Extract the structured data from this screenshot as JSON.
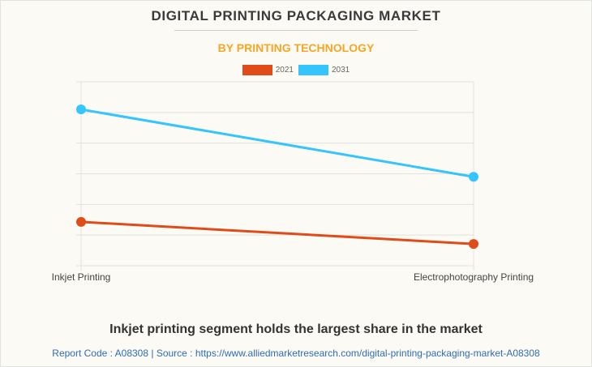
{
  "header": {
    "title": "DIGITAL PRINTING PACKAGING MARKET",
    "subtitle": "BY PRINTING TECHNOLOGY"
  },
  "legend": [
    {
      "label": "2021",
      "color": "#e04b1a"
    },
    {
      "label": "2031",
      "color": "#35c4fb"
    }
  ],
  "chart_data": {
    "type": "line",
    "title": "DIGITAL PRINTING PACKAGING MARKET",
    "subtitle": "BY PRINTING TECHNOLOGY",
    "categories": [
      "Inkjet Printing",
      "Electrophotography Printing"
    ],
    "series": [
      {
        "name": "2021",
        "color": "#e04b1a",
        "values": [
          14.3,
          7.1
        ]
      },
      {
        "name": "2031",
        "color": "#35c4fb",
        "values": [
          51,
          29
        ]
      }
    ],
    "xlabel": "",
    "ylabel": "",
    "ylim": [
      0,
      60
    ],
    "y_ticks": [
      0,
      10,
      20,
      30,
      40,
      50,
      60
    ],
    "y_tick_labels_visible": false,
    "grid": true,
    "legend_position": "top-center"
  },
  "footer": {
    "caption": "Inkjet printing segment holds the largest share in the market",
    "source": "Report Code : A08308  |  Source : https://www.alliedmarketresearch.com/digital-printing-packaging-market-A08308"
  }
}
